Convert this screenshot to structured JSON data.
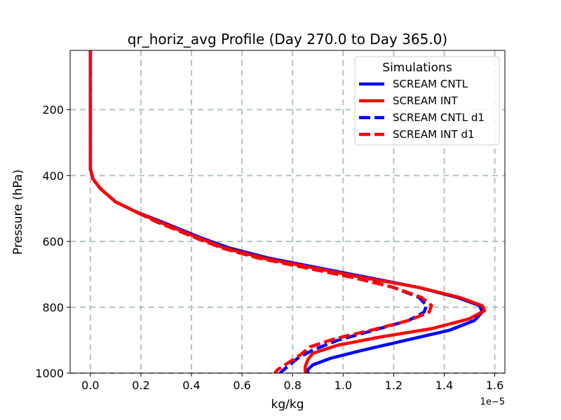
{
  "chart_data": {
    "type": "line",
    "title": "qr_horiz_avg Profile (Day 270.0 to Day 365.0)",
    "xlabel": "kg/kg",
    "ylabel": "Pressure (hPa)",
    "x_offset_label": "1e−5",
    "xlim": [
      -0.08,
      1.64
    ],
    "ylim": [
      1000,
      20
    ],
    "y_inverted": true,
    "xticks": [
      0.0,
      0.2,
      0.4,
      0.6,
      0.8,
      1.0,
      1.2,
      1.4,
      1.6
    ],
    "xtick_labels": [
      "0.0",
      "0.2",
      "0.4",
      "0.6",
      "0.8",
      "1.0",
      "1.2",
      "1.4",
      "1.6"
    ],
    "yticks": [
      200,
      400,
      600,
      800,
      1000
    ],
    "ytick_labels": [
      "200",
      "400",
      "600",
      "800",
      "1000"
    ],
    "grid": true,
    "legend": {
      "title": "Simulations",
      "placement": "upper right"
    },
    "series": [
      {
        "name": "SCREAM CNTL",
        "color": "#0000ff",
        "style": "solid",
        "points": [
          [
            0.0,
            20
          ],
          [
            0.0,
            100
          ],
          [
            0.0,
            200
          ],
          [
            0.0,
            300
          ],
          [
            0.0,
            380
          ],
          [
            0.01,
            410
          ],
          [
            0.04,
            440
          ],
          [
            0.1,
            480
          ],
          [
            0.18,
            510
          ],
          [
            0.28,
            540
          ],
          [
            0.36,
            565
          ],
          [
            0.44,
            590
          ],
          [
            0.55,
            620
          ],
          [
            0.7,
            650
          ],
          [
            0.9,
            680
          ],
          [
            1.1,
            710
          ],
          [
            1.3,
            740
          ],
          [
            1.45,
            770
          ],
          [
            1.54,
            795
          ],
          [
            1.55,
            815
          ],
          [
            1.52,
            840
          ],
          [
            1.42,
            870
          ],
          [
            1.25,
            900
          ],
          [
            1.08,
            930
          ],
          [
            0.95,
            955
          ],
          [
            0.88,
            975
          ],
          [
            0.86,
            990
          ],
          [
            0.86,
            1000
          ]
        ]
      },
      {
        "name": "SCREAM INT",
        "color": "#ff0000",
        "style": "solid",
        "points": [
          [
            0.0,
            20
          ],
          [
            0.0,
            100
          ],
          [
            0.0,
            200
          ],
          [
            0.0,
            300
          ],
          [
            0.0,
            380
          ],
          [
            0.01,
            410
          ],
          [
            0.04,
            440
          ],
          [
            0.1,
            480
          ],
          [
            0.18,
            510
          ],
          [
            0.27,
            540
          ],
          [
            0.35,
            565
          ],
          [
            0.43,
            590
          ],
          [
            0.53,
            620
          ],
          [
            0.68,
            650
          ],
          [
            0.88,
            680
          ],
          [
            1.08,
            710
          ],
          [
            1.3,
            740
          ],
          [
            1.46,
            770
          ],
          [
            1.55,
            795
          ],
          [
            1.56,
            810
          ],
          [
            1.5,
            835
          ],
          [
            1.35,
            865
          ],
          [
            1.15,
            890
          ],
          [
            0.98,
            915
          ],
          [
            0.88,
            940
          ],
          [
            0.86,
            960
          ],
          [
            0.85,
            980
          ],
          [
            0.85,
            1000
          ]
        ]
      },
      {
        "name": "SCREAM CNTL d1",
        "color": "#0000ff",
        "style": "dashed",
        "points": [
          [
            0.0,
            20
          ],
          [
            0.0,
            100
          ],
          [
            0.0,
            200
          ],
          [
            0.0,
            300
          ],
          [
            0.0,
            380
          ],
          [
            0.01,
            410
          ],
          [
            0.04,
            440
          ],
          [
            0.1,
            480
          ],
          [
            0.18,
            510
          ],
          [
            0.26,
            540
          ],
          [
            0.34,
            565
          ],
          [
            0.42,
            590
          ],
          [
            0.52,
            620
          ],
          [
            0.67,
            650
          ],
          [
            0.86,
            680
          ],
          [
            1.05,
            710
          ],
          [
            1.2,
            740
          ],
          [
            1.3,
            770
          ],
          [
            1.33,
            795
          ],
          [
            1.32,
            815
          ],
          [
            1.26,
            840
          ],
          [
            1.12,
            870
          ],
          [
            0.98,
            900
          ],
          [
            0.88,
            930
          ],
          [
            0.82,
            955
          ],
          [
            0.78,
            980
          ],
          [
            0.75,
            1000
          ]
        ]
      },
      {
        "name": "SCREAM INT d1",
        "color": "#ff0000",
        "style": "dashed",
        "points": [
          [
            0.0,
            20
          ],
          [
            0.0,
            100
          ],
          [
            0.0,
            200
          ],
          [
            0.0,
            300
          ],
          [
            0.0,
            380
          ],
          [
            0.01,
            410
          ],
          [
            0.04,
            440
          ],
          [
            0.1,
            480
          ],
          [
            0.18,
            510
          ],
          [
            0.26,
            540
          ],
          [
            0.34,
            565
          ],
          [
            0.42,
            590
          ],
          [
            0.52,
            620
          ],
          [
            0.66,
            650
          ],
          [
            0.85,
            680
          ],
          [
            1.04,
            710
          ],
          [
            1.2,
            740
          ],
          [
            1.31,
            770
          ],
          [
            1.35,
            795
          ],
          [
            1.34,
            815
          ],
          [
            1.26,
            840
          ],
          [
            1.12,
            868
          ],
          [
            0.97,
            895
          ],
          [
            0.87,
            920
          ],
          [
            0.83,
            945
          ],
          [
            0.78,
            970
          ],
          [
            0.74,
            990
          ],
          [
            0.73,
            1000
          ]
        ]
      }
    ]
  }
}
